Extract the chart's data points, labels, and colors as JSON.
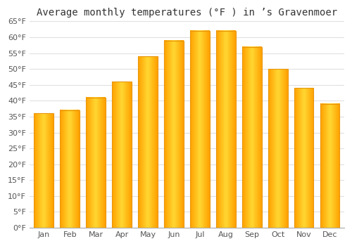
{
  "title": "Average monthly temperatures (°F ) in ’s Gravenmoer",
  "months": [
    "Jan",
    "Feb",
    "Mar",
    "Apr",
    "May",
    "Jun",
    "Jul",
    "Aug",
    "Sep",
    "Oct",
    "Nov",
    "Dec"
  ],
  "values": [
    36,
    37,
    41,
    46,
    54,
    59,
    62,
    62,
    57,
    50,
    44,
    39
  ],
  "bar_edge_color": "#E8960A",
  "bar_center_color": "#FFD040",
  "bar_side_color": "#FFA500",
  "background_color": "#ffffff",
  "plot_bg_color": "#ffffff",
  "grid_color": "#e0e0e0",
  "ylim": [
    0,
    65
  ],
  "yticks": [
    0,
    5,
    10,
    15,
    20,
    25,
    30,
    35,
    40,
    45,
    50,
    55,
    60,
    65
  ],
  "ytick_labels": [
    "0°F",
    "5°F",
    "10°F",
    "15°F",
    "20°F",
    "25°F",
    "30°F",
    "35°F",
    "40°F",
    "45°F",
    "50°F",
    "55°F",
    "60°F",
    "65°F"
  ],
  "title_fontsize": 10,
  "tick_fontsize": 8,
  "bar_width": 0.75
}
